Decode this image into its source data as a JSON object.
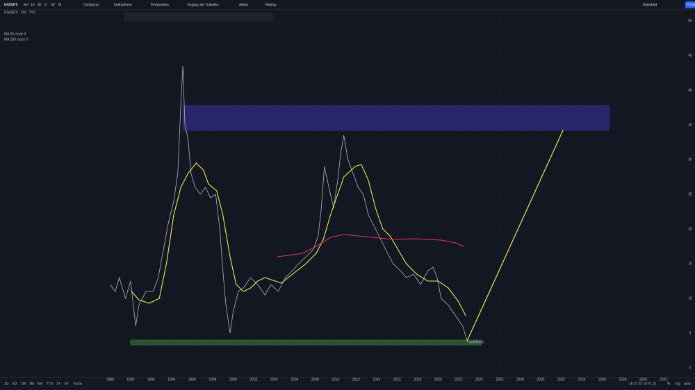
{
  "toolbar": {
    "symbol": "HSI/SPX",
    "intervals": [
      "5m",
      "1h",
      "4h",
      "D",
      "W",
      "M"
    ],
    "buttons": [
      "Comparar",
      "Indicadores",
      "Financeiros",
      "Espaço de Trabalho",
      "Alerta",
      "Replay"
    ],
    "right": [
      "Standard",
      "Publicar"
    ]
  },
  "bottom_bar": {
    "ranges": [
      "1D",
      "5D",
      "1M",
      "3M",
      "6M",
      "YTD",
      "1Y",
      "5Y",
      "Todos"
    ],
    "time": "16:27:37 (UTC-3)",
    "options": [
      "%",
      "log",
      "auto"
    ]
  },
  "chart_data": {
    "type": "line",
    "legend_title": "HSI/SPX · 1M · TVC",
    "xlim": [
      1977.6,
      2043.7
    ],
    "ylim": [
      0,
      51
    ],
    "xticks": [
      1988,
      1990,
      1992,
      1994,
      1996,
      1998,
      2000,
      2002,
      2004,
      2006,
      2008,
      2010,
      2012,
      2014,
      2016,
      2018,
      2020,
      2022,
      2024,
      2026,
      2028,
      2030,
      2032,
      2034,
      2036,
      2038,
      2040,
      2042
    ],
    "yticks": [
      0,
      5,
      10,
      15,
      20,
      25,
      30,
      35,
      40,
      45,
      50
    ],
    "series": [
      {
        "name": "HSI/SPX",
        "color": "#b2b5be",
        "x": [
          1988.0,
          1988.5,
          1988.9,
          1989.5,
          1990.0,
          1990.5,
          1990.8,
          1991.5,
          1992.2,
          1992.7,
          1993.2,
          1993.7,
          1994.2,
          1994.6,
          1994.9,
          1995.1,
          1995.3,
          1995.6,
          1995.9,
          1996.3,
          1996.8,
          1997.3,
          1997.8,
          1998.3,
          1998.7,
          1999.0,
          1999.3,
          1999.7,
          2000.0,
          2000.5,
          2001.0,
          2001.7,
          2002.4,
          2003.1,
          2003.7,
          2004.4,
          2005.1,
          2005.8,
          2006.4,
          2007.1,
          2007.8,
          2008.3,
          2008.6,
          2008.9,
          2009.2,
          2009.5,
          2009.8,
          2010.2,
          2010.5,
          2010.8,
          2011.2,
          2011.7,
          2012.2,
          2012.7,
          2013.2,
          2013.9,
          2014.4,
          2014.9,
          2015.6,
          2016.3,
          2016.9,
          2017.6,
          2018.3,
          2019.0,
          2019.5,
          2019.9,
          2020.3,
          2021.0,
          2021.7,
          2022.4,
          2022.8
        ],
        "values": [
          12,
          11,
          13,
          10,
          12.5,
          6,
          9,
          11,
          11,
          13,
          17,
          21,
          24,
          28,
          38,
          43.5,
          35,
          33,
          28,
          26,
          25,
          26,
          24.5,
          25,
          20,
          14,
          9,
          5,
          8,
          11,
          11.5,
          13,
          12,
          10.5,
          12,
          11,
          13,
          14,
          15,
          16,
          17,
          19,
          23,
          29,
          27,
          25,
          23,
          27,
          31,
          33.5,
          30,
          28,
          26,
          25,
          22,
          20,
          18.5,
          17,
          15,
          14,
          13,
          13.5,
          12,
          14,
          14.5,
          13,
          10,
          9,
          7.5,
          6,
          4
        ]
      },
      {
        "name": "MA 50 close 0",
        "color": "#f5e84a",
        "x": [
          1990.1,
          1990.8,
          1991.8,
          1992.8,
          1993.5,
          1994.2,
          1994.9,
          1995.6,
          1996.4,
          1997.1,
          1997.6,
          1998.4,
          1999.0,
          1999.7,
          2000.3,
          2001.0,
          2001.7,
          2002.4,
          2003.1,
          2004.1,
          2004.7,
          2005.8,
          2007.1,
          2008.1,
          2008.8,
          2009.5,
          2010.2,
          2010.8,
          2011.9,
          2012.5,
          2013.2,
          2013.9,
          2014.6,
          2015.3,
          2016.1,
          2016.9,
          2017.9,
          2019.0,
          2020.0,
          2021.0,
          2022.0,
          2022.7
        ],
        "values": [
          11,
          9.8,
          9.3,
          10,
          15,
          22,
          26,
          28,
          29.5,
          28.5,
          26.5,
          25.5,
          22,
          16,
          12,
          11,
          11.5,
          12.5,
          13,
          12.5,
          12.2,
          13.5,
          15,
          16.5,
          18.5,
          22,
          25,
          27.5,
          29,
          29.3,
          27,
          23,
          20,
          19,
          17,
          15,
          13.5,
          12.5,
          12.5,
          11.5,
          9.5,
          7.5
        ]
      },
      {
        "name": "MA 200 close 0",
        "color": "#e0336c",
        "x": [
          2004.3,
          2005.4,
          2006.8,
          2008.1,
          2009.5,
          2010.8,
          2012.2,
          2013.6,
          2014.9,
          2016.3,
          2017.6,
          2019.0,
          2020.3,
          2021.7,
          2022.5
        ],
        "values": [
          16,
          16.2,
          16.5,
          17.5,
          18.8,
          19.2,
          19,
          18.8,
          18.6,
          18.5,
          18.6,
          18.5,
          18.4,
          18,
          17.5
        ]
      }
    ],
    "zones": [
      {
        "x": [
          1995.1,
          2036.7
        ],
        "values": [
          37.8,
          34.2
        ],
        "color": "#2e2a78"
      },
      {
        "x": [
          1990.0,
          2024.2
        ],
        "values": [
          4.0,
          3.3
        ],
        "color": "#2f5e34"
      }
    ],
    "projection": {
      "x": [
        2022.8,
        2032.2
      ],
      "values": [
        3.8,
        34.3
      ],
      "color": "#f5e84a"
    },
    "annotation": {
      "text": "undefined",
      "x": 2022.8,
      "value": 3.7
    }
  }
}
